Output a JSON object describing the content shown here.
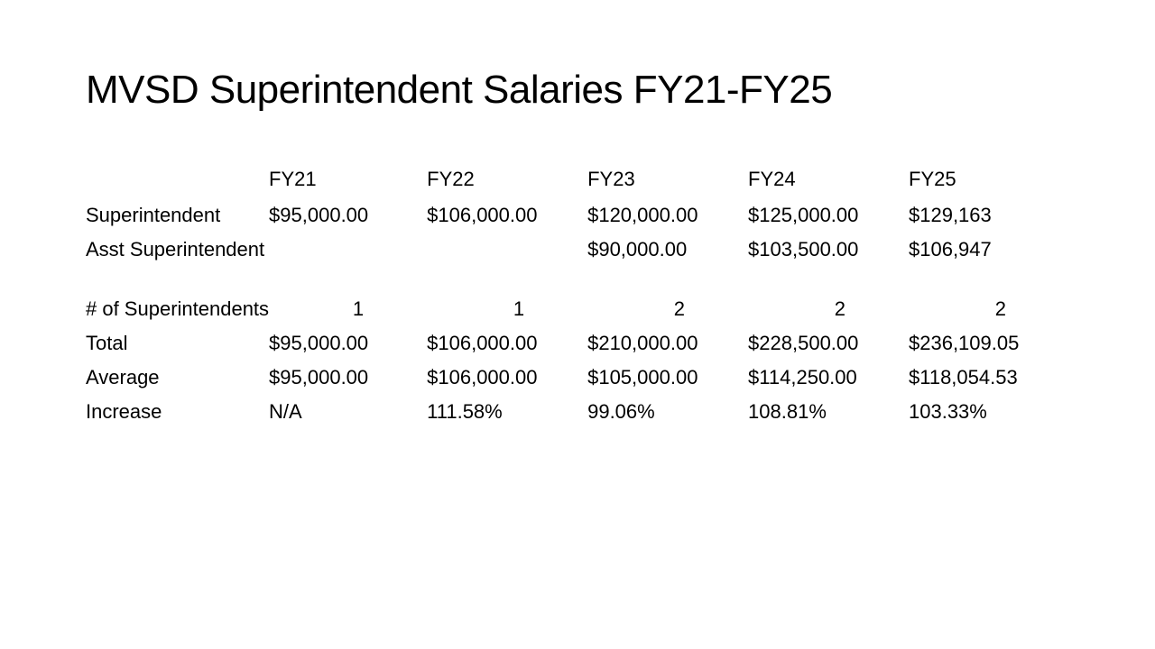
{
  "title": "MVSD Superintendent Salaries FY21-FY25",
  "table": {
    "columns": [
      "FY21",
      "FY22",
      "FY23",
      "FY24",
      "FY25"
    ],
    "rows": [
      {
        "label": "Superintendent",
        "values": [
          "$95,000.00",
          "$106,000.00",
          "$120,000.00",
          "$125,000.00",
          "$129,163"
        ],
        "align": "left"
      },
      {
        "label": "Asst Superintendent",
        "values": [
          "",
          "",
          "$90,000.00",
          "$103,500.00",
          "$106,947"
        ],
        "align": "left"
      }
    ],
    "summary_rows": [
      {
        "label": "# of Superintendents",
        "values": [
          "1",
          "1",
          "2",
          "2",
          "2"
        ],
        "align": "right"
      },
      {
        "label": "Total",
        "values": [
          "$95,000.00",
          "$106,000.00",
          "$210,000.00",
          "$228,500.00",
          "$236,109.05"
        ],
        "align": "left"
      },
      {
        "label": "Average",
        "values": [
          "$95,000.00",
          "$106,000.00",
          "$105,000.00",
          "$114,250.00",
          "$118,054.53"
        ],
        "align": "left"
      },
      {
        "label": "Increase",
        "values": [
          "N/A",
          "111.58%",
          "99.06%",
          "108.81%",
          "103.33%"
        ],
        "align": "left"
      }
    ],
    "font_size": 22,
    "title_font_size": 44,
    "text_color": "#000000",
    "background_color": "#ffffff"
  }
}
